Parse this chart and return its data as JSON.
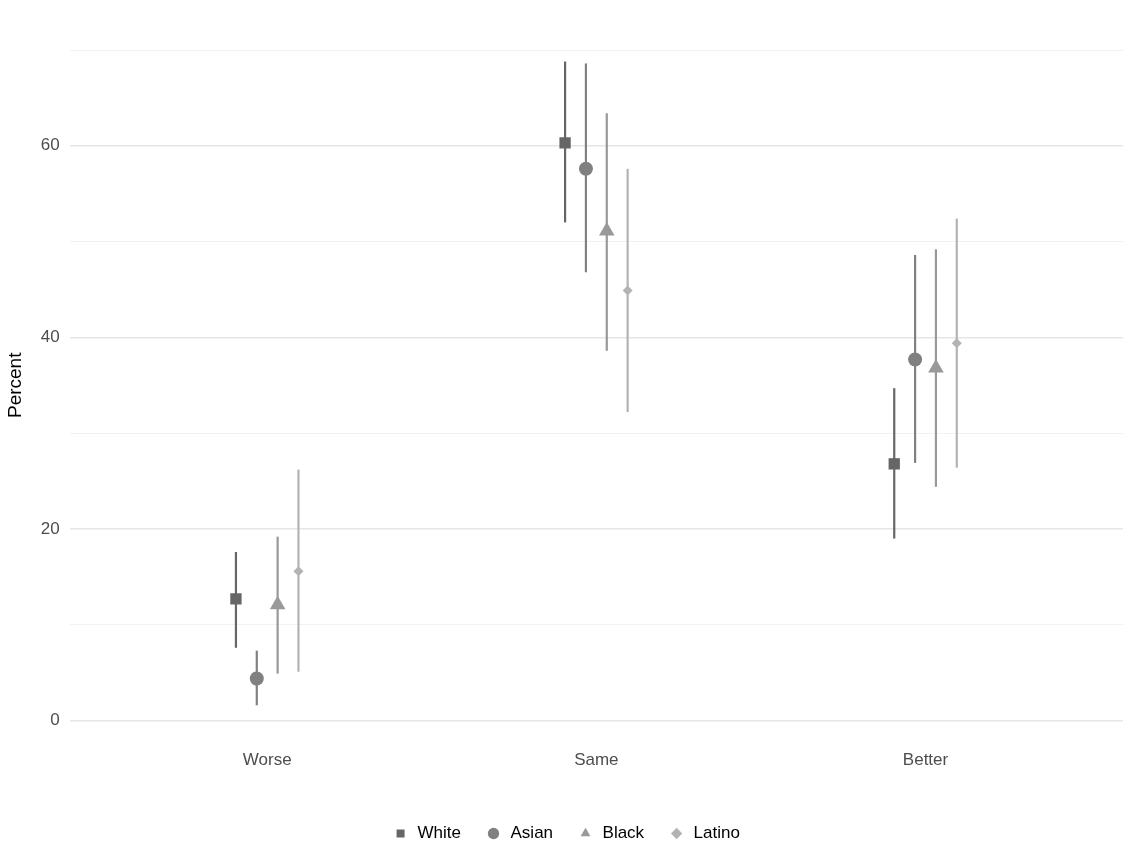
{
  "chart_data": {
    "type": "scatter",
    "ylabel": "Percent",
    "categories": [
      "Worse",
      "Same",
      "Better"
    ],
    "ylim": [
      0,
      70
    ],
    "yticks": [
      0,
      {
        "value": 10,
        "label": null
      },
      20,
      {
        "value": 30,
        "label": null
      },
      40,
      {
        "value": 50,
        "label": null
      },
      60,
      {
        "value": 70,
        "label": null
      }
    ],
    "grid": "y",
    "legend": "bottom",
    "series": [
      {
        "name": "White",
        "color": "#666666",
        "marker": "square",
        "values": [
          12.7,
          60.3,
          26.8
        ],
        "errors": [
          [
            7.6,
            17.6
          ],
          [
            52.0,
            68.8
          ],
          [
            19.0,
            34.7
          ]
        ]
      },
      {
        "name": "Asian",
        "color": "#808080",
        "marker": "circle",
        "values": [
          4.4,
          57.6,
          37.7
        ],
        "errors": [
          [
            1.6,
            7.3
          ],
          [
            46.8,
            68.6
          ],
          [
            26.9,
            48.6
          ]
        ]
      },
      {
        "name": "Black",
        "color": "#999999",
        "marker": "triangle",
        "values": [
          12.1,
          51.1,
          36.8
        ],
        "errors": [
          [
            4.9,
            19.2
          ],
          [
            38.6,
            63.4
          ],
          [
            24.4,
            49.2
          ]
        ]
      },
      {
        "name": "Latino",
        "color": "#b3b3b3",
        "marker": "diamond",
        "values": [
          15.6,
          44.9,
          39.4
        ],
        "errors": [
          [
            5.1,
            26.2
          ],
          [
            32.2,
            57.6
          ],
          [
            26.4,
            52.4
          ]
        ]
      }
    ]
  }
}
